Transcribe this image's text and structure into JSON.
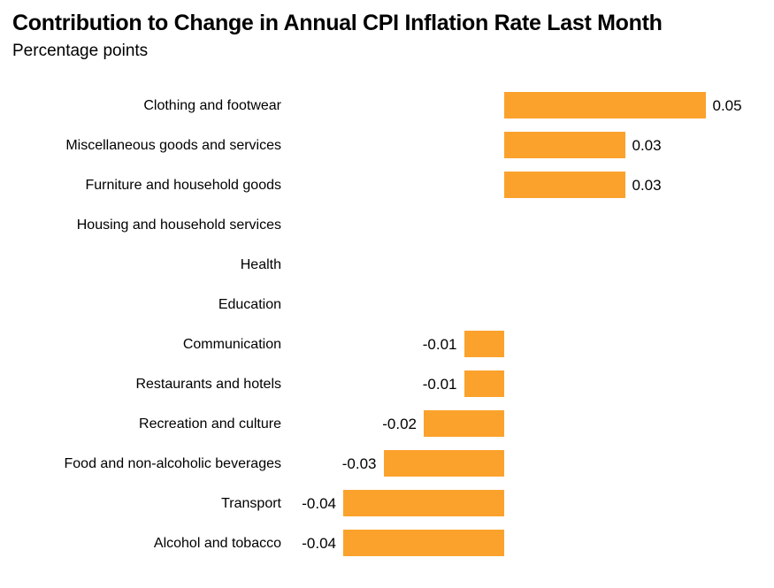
{
  "header": {
    "title": "Contribution to Change in Annual CPI Inflation Rate Last Month",
    "subtitle": "Percentage points"
  },
  "colors": {
    "bar": "#FBA22D",
    "text": "#000000",
    "background": "#FFFFFF"
  },
  "chart_data": {
    "type": "bar",
    "orientation": "horizontal",
    "title": "Contribution to Change in Annual CPI Inflation Rate Last Month",
    "subtitle": "Percentage points",
    "ylabel": "",
    "xlabel": "Percentage points",
    "xlim": [
      -0.055,
      0.067
    ],
    "grid": false,
    "legend": "none",
    "categories": [
      "Clothing and footwear",
      "Miscellaneous goods and services",
      "Furniture and household goods",
      "Housing and household services",
      "Health",
      "Education",
      "Communication",
      "Restaurants and hotels",
      "Recreation and culture",
      "Food and non-alcoholic beverages",
      "Transport",
      "Alcohol and tobacco"
    ],
    "values": [
      0.05,
      0.03,
      0.03,
      0,
      0,
      0,
      -0.01,
      -0.01,
      -0.02,
      -0.03,
      -0.04,
      -0.04
    ],
    "value_labels": [
      "0.05",
      "0.03",
      "0.03",
      "",
      "",
      "",
      "-0.01",
      "-0.01",
      "-0.02",
      "-0.03",
      "-0.04",
      "-0.04"
    ]
  }
}
